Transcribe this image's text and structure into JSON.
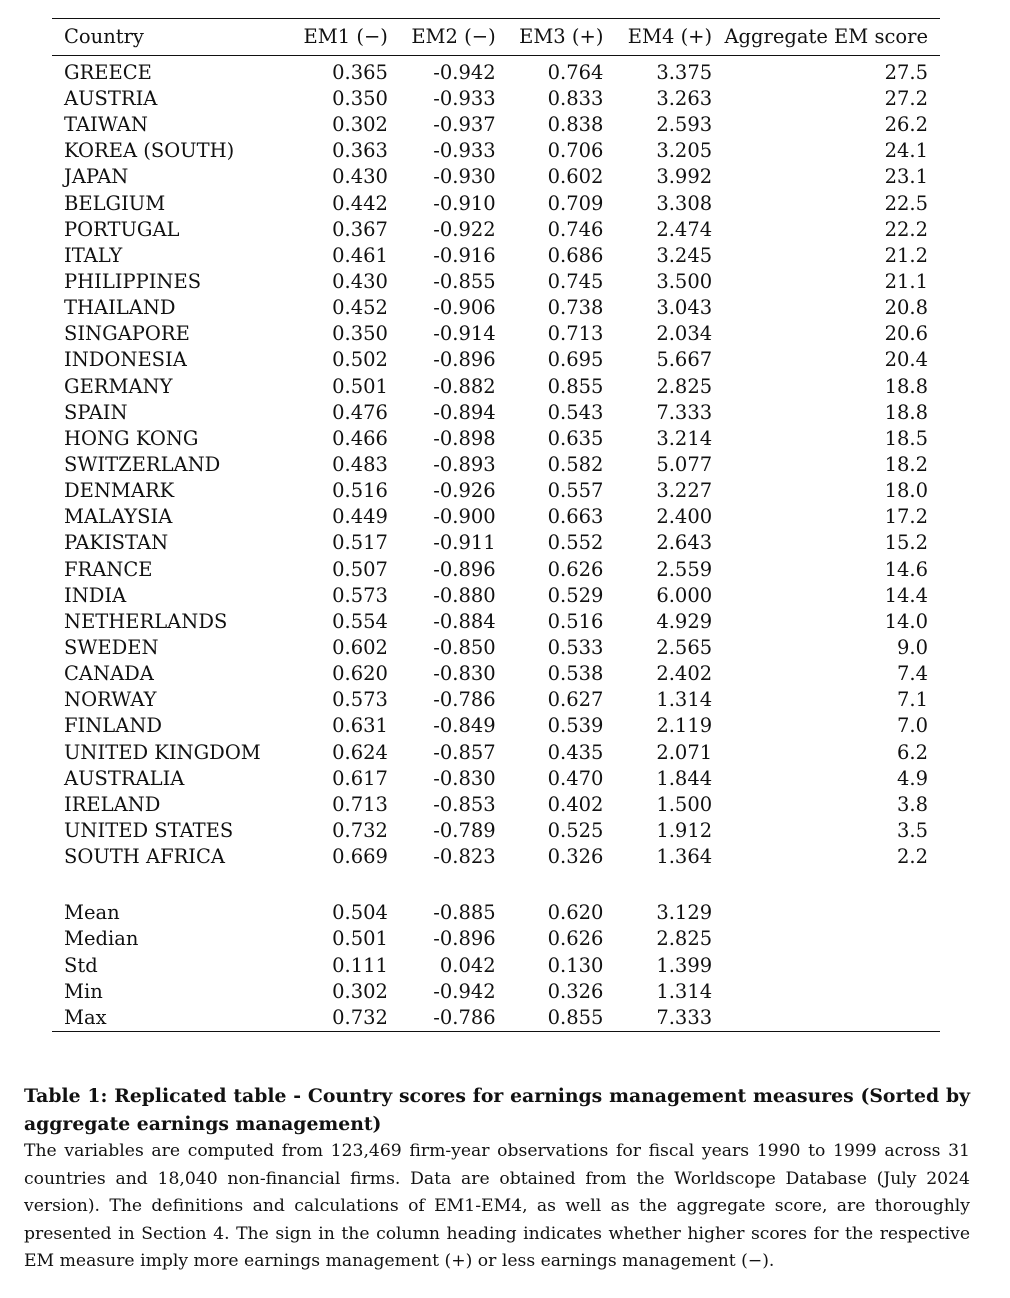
{
  "table": {
    "headers": [
      "Country",
      "EM1 (−)",
      "EM2 (−)",
      "EM3 (+)",
      "EM4 (+)",
      "Aggregate EM score"
    ],
    "rows": [
      [
        "GREECE",
        "0.365",
        "-0.942",
        "0.764",
        "3.375",
        "27.5"
      ],
      [
        "AUSTRIA",
        "0.350",
        "-0.933",
        "0.833",
        "3.263",
        "27.2"
      ],
      [
        "TAIWAN",
        "0.302",
        "-0.937",
        "0.838",
        "2.593",
        "26.2"
      ],
      [
        "KOREA (SOUTH)",
        "0.363",
        "-0.933",
        "0.706",
        "3.205",
        "24.1"
      ],
      [
        "JAPAN",
        "0.430",
        "-0.930",
        "0.602",
        "3.992",
        "23.1"
      ],
      [
        "BELGIUM",
        "0.442",
        "-0.910",
        "0.709",
        "3.308",
        "22.5"
      ],
      [
        "PORTUGAL",
        "0.367",
        "-0.922",
        "0.746",
        "2.474",
        "22.2"
      ],
      [
        "ITALY",
        "0.461",
        "-0.916",
        "0.686",
        "3.245",
        "21.2"
      ],
      [
        "PHILIPPINES",
        "0.430",
        "-0.855",
        "0.745",
        "3.500",
        "21.1"
      ],
      [
        "THAILAND",
        "0.452",
        "-0.906",
        "0.738",
        "3.043",
        "20.8"
      ],
      [
        "SINGAPORE",
        "0.350",
        "-0.914",
        "0.713",
        "2.034",
        "20.6"
      ],
      [
        "INDONESIA",
        "0.502",
        "-0.896",
        "0.695",
        "5.667",
        "20.4"
      ],
      [
        "GERMANY",
        "0.501",
        "-0.882",
        "0.855",
        "2.825",
        "18.8"
      ],
      [
        "SPAIN",
        "0.476",
        "-0.894",
        "0.543",
        "7.333",
        "18.8"
      ],
      [
        "HONG KONG",
        "0.466",
        "-0.898",
        "0.635",
        "3.214",
        "18.5"
      ],
      [
        "SWITZERLAND",
        "0.483",
        "-0.893",
        "0.582",
        "5.077",
        "18.2"
      ],
      [
        "DENMARK",
        "0.516",
        "-0.926",
        "0.557",
        "3.227",
        "18.0"
      ],
      [
        "MALAYSIA",
        "0.449",
        "-0.900",
        "0.663",
        "2.400",
        "17.2"
      ],
      [
        "PAKISTAN",
        "0.517",
        "-0.911",
        "0.552",
        "2.643",
        "15.2"
      ],
      [
        "FRANCE",
        "0.507",
        "-0.896",
        "0.626",
        "2.559",
        "14.6"
      ],
      [
        "INDIA",
        "0.573",
        "-0.880",
        "0.529",
        "6.000",
        "14.4"
      ],
      [
        "NETHERLANDS",
        "0.554",
        "-0.884",
        "0.516",
        "4.929",
        "14.0"
      ],
      [
        "SWEDEN",
        "0.602",
        "-0.850",
        "0.533",
        "2.565",
        "9.0"
      ],
      [
        "CANADA",
        "0.620",
        "-0.830",
        "0.538",
        "2.402",
        "7.4"
      ],
      [
        "NORWAY",
        "0.573",
        "-0.786",
        "0.627",
        "1.314",
        "7.1"
      ],
      [
        "FINLAND",
        "0.631",
        "-0.849",
        "0.539",
        "2.119",
        "7.0"
      ],
      [
        "UNITED KINGDOM",
        "0.624",
        "-0.857",
        "0.435",
        "2.071",
        "6.2"
      ],
      [
        "AUSTRALIA",
        "0.617",
        "-0.830",
        "0.470",
        "1.844",
        "4.9"
      ],
      [
        "IRELAND",
        "0.713",
        "-0.853",
        "0.402",
        "1.500",
        "3.8"
      ],
      [
        "UNITED STATES",
        "0.732",
        "-0.789",
        "0.525",
        "1.912",
        "3.5"
      ],
      [
        "SOUTH AFRICA",
        "0.669",
        "-0.823",
        "0.326",
        "1.364",
        "2.2"
      ]
    ],
    "summary": [
      [
        "Mean",
        "0.504",
        "-0.885",
        "0.620",
        "3.129",
        ""
      ],
      [
        "Median",
        "0.501",
        "-0.896",
        "0.626",
        "2.825",
        ""
      ],
      [
        "Std",
        "0.111",
        "0.042",
        "0.130",
        "1.399",
        ""
      ],
      [
        "Min",
        "0.302",
        "-0.942",
        "0.326",
        "1.314",
        ""
      ],
      [
        "Max",
        "0.732",
        "-0.786",
        "0.855",
        "7.333",
        ""
      ]
    ]
  },
  "caption": {
    "title": "Table 1: Replicated table - Country scores for earnings management measures (Sorted by aggregate earnings management)",
    "body": "The variables are computed from 123,469 firm-year observations for fiscal years 1990 to 1999 across 31 countries and 18,040 non-financial firms. Data are obtained from the Worldscope Database (July 2024 version). The definitions and calculations of EM1-EM4, as well as the aggregate score, are thoroughly presented in Section 4. The sign in the column heading indicates whether higher scores for the respective EM measure imply more earnings management (+) or less earnings management (−)."
  }
}
